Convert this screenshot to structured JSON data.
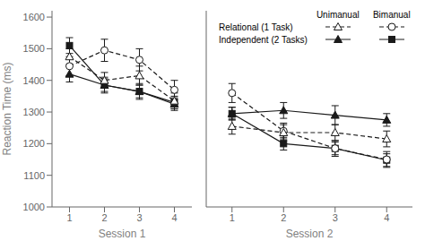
{
  "chart_data": [
    {
      "type": "line",
      "xlabel": "Session 1",
      "ylabel": "Reaction Time (ms)",
      "x": [
        1,
        2,
        3,
        4
      ],
      "xlim": [
        0.5,
        4.5
      ],
      "xticks": [
        1,
        2,
        3,
        4
      ],
      "ylim": [
        1000,
        1620
      ],
      "yticks": [
        1000,
        1100,
        1200,
        1300,
        1400,
        1500,
        1600
      ],
      "series": [
        {
          "row": "Independent (2 Tasks)",
          "column": "Bimanual",
          "color": "#1a1a1a",
          "marker": "square",
          "line_style": "solid",
          "values": [
            1510,
            1385,
            1365,
            1330
          ],
          "errors": [
            25,
            25,
            25,
            20
          ]
        },
        {
          "row": "Relational (1 Task)",
          "column": "Bimanual",
          "color": "#1a1a1a",
          "marker": "open_circle",
          "line_style": "dashed",
          "values": [
            1445,
            1495,
            1465,
            1370
          ],
          "errors": [
            30,
            35,
            35,
            30
          ]
        },
        {
          "row": "Independent (2 Tasks)",
          "column": "Unimanual",
          "color": "#1a1a1a",
          "marker": "triangle",
          "line_style": "solid",
          "values": [
            1420,
            1385,
            1365,
            1325
          ],
          "errors": [
            25,
            20,
            20,
            20
          ]
        },
        {
          "row": "Relational (1 Task)",
          "column": "Unimanual",
          "color": "#1a1a1a",
          "marker": "open_triangle",
          "line_style": "dashed",
          "values": [
            1475,
            1400,
            1415,
            1335
          ],
          "errors": [
            25,
            25,
            30,
            25
          ]
        }
      ]
    },
    {
      "type": "line",
      "xlabel": "Session 2",
      "tick_labels": "x",
      "x": [
        1,
        2,
        3,
        4
      ],
      "xlim": [
        0.5,
        4.5
      ],
      "xticks": [
        1,
        2,
        3,
        4
      ],
      "ylim": [
        1000,
        1620
      ],
      "legend_columns": [
        "Unimanual",
        "Bimanual"
      ],
      "legend_rows": [
        "Relational (1 Task)",
        "Independent (2 Tasks)"
      ],
      "series": [
        {
          "row": "Independent (2 Tasks)",
          "column": "Bimanual",
          "color": "#1a1a1a",
          "marker": "square",
          "line_style": "solid",
          "values": [
            1295,
            1200,
            1185,
            1148
          ],
          "errors": [
            20,
            20,
            20,
            20
          ]
        },
        {
          "row": "Relational (1 Task)",
          "column": "Bimanual",
          "color": "#1a1a1a",
          "marker": "open_circle",
          "line_style": "dashed",
          "values": [
            1360,
            1240,
            1185,
            1150
          ],
          "errors": [
            30,
            25,
            25,
            25
          ]
        },
        {
          "row": "Independent (2 Tasks)",
          "column": "Unimanual",
          "color": "#1a1a1a",
          "marker": "triangle",
          "line_style": "solid",
          "values": [
            1295,
            1305,
            1290,
            1275
          ],
          "errors": [
            20,
            25,
            30,
            20
          ]
        },
        {
          "row": "Relational (1 Task)",
          "column": "Unimanual",
          "color": "#1a1a1a",
          "marker": "open_triangle",
          "line_style": "dashed",
          "values": [
            1255,
            1235,
            1235,
            1215
          ],
          "errors": [
            25,
            25,
            25,
            25
          ]
        }
      ]
    }
  ]
}
